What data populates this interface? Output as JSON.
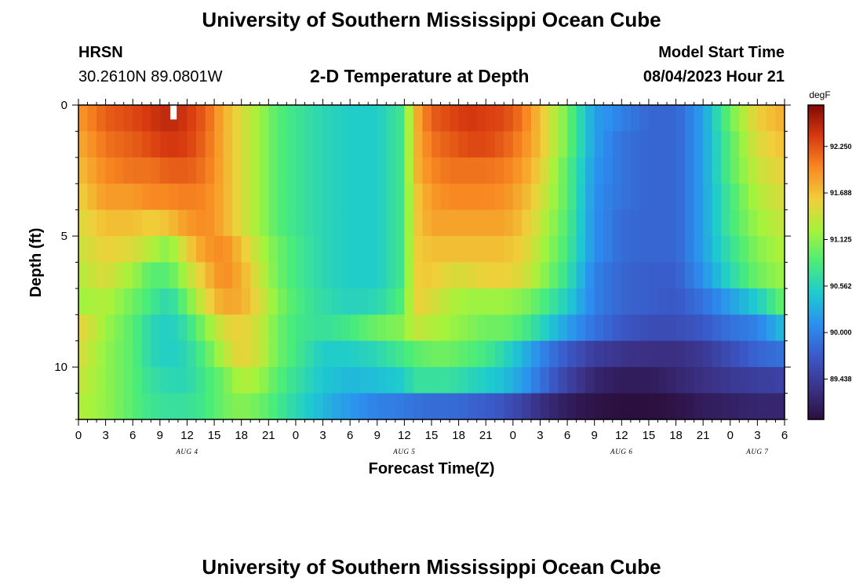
{
  "header": {
    "title": "University of Southern Mississippi Ocean Cube",
    "station": "HRSN",
    "coords": "30.2610N  89.0801W",
    "plot_title": "2-D Temperature at Depth",
    "model_label": "Model Start Time",
    "model_time": "08/04/2023 Hour 21",
    "footer_title": "University of Southern Mississippi Ocean Cube"
  },
  "chart_data": {
    "type": "heatmap",
    "title": "2-D Temperature at Depth",
    "xlabel": "Forecast Time(Z)",
    "ylabel": "Depth (ft)",
    "x_hours": [
      0,
      78
    ],
    "y_range": [
      0,
      12
    ],
    "x_tick_labels": [
      "0",
      "3",
      "6",
      "9",
      "12",
      "15",
      "18",
      "21",
      "0",
      "3",
      "6",
      "9",
      "12",
      "15",
      "18",
      "21",
      "0",
      "3",
      "6",
      "9",
      "12",
      "15",
      "18",
      "21",
      "0",
      "3",
      "6"
    ],
    "y_tick_labels": [
      "0",
      "5",
      "10"
    ],
    "date_labels": [
      {
        "label": "AUG 4",
        "hour": 12
      },
      {
        "label": "AUG 5",
        "hour": 36
      },
      {
        "label": "AUG 6",
        "hour": 60
      },
      {
        "label": "AUG 7",
        "hour": 75
      }
    ],
    "colorbar": {
      "unit": "degF",
      "min": 88.95,
      "max": 92.75,
      "tick_labels": [
        "92.250",
        "91.688",
        "91.125",
        "90.562",
        "90.000",
        "89.438"
      ],
      "tick_values": [
        92.25,
        91.688,
        91.125,
        90.562,
        90.0,
        89.438
      ]
    },
    "layer_depth_ft": [
      0.5,
      1.5,
      2.5,
      3.5,
      4.5,
      5.5,
      6.5,
      7.5,
      8.5,
      9.5,
      10.5,
      11.5
    ],
    "keyframes_hours": [
      0,
      3,
      6,
      8,
      10,
      12,
      14,
      16,
      18,
      20,
      22,
      24,
      27,
      30,
      33,
      36,
      37,
      39,
      41,
      43,
      45,
      47,
      49,
      51,
      54,
      57,
      60,
      63,
      66,
      69,
      72,
      75,
      78
    ],
    "temperature_degF": [
      [
        91.9,
        92.2,
        92.3,
        92.4,
        92.5,
        92.4,
        92.2,
        91.8,
        91.5,
        91.2,
        90.9,
        90.75,
        90.6,
        90.5,
        90.5,
        90.8,
        91.7,
        92.2,
        92.3,
        92.4,
        92.35,
        92.3,
        92.1,
        91.7,
        91.0,
        90.2,
        90.0,
        89.8,
        89.8,
        90.2,
        91.0,
        91.6,
        91.8
      ],
      [
        91.8,
        92.1,
        92.2,
        92.3,
        92.4,
        92.35,
        92.15,
        91.8,
        91.5,
        91.2,
        90.9,
        90.75,
        90.6,
        90.5,
        90.5,
        90.8,
        91.7,
        92.1,
        92.2,
        92.3,
        92.3,
        92.2,
        92.0,
        91.7,
        91.0,
        90.2,
        89.9,
        89.8,
        89.8,
        90.2,
        90.9,
        91.5,
        91.7
      ],
      [
        91.7,
        92.0,
        92.1,
        92.1,
        92.2,
        92.2,
        92.1,
        91.8,
        91.5,
        91.2,
        90.9,
        90.75,
        90.6,
        90.5,
        90.5,
        90.8,
        91.7,
        92.0,
        92.1,
        92.1,
        92.1,
        92.05,
        91.9,
        91.6,
        90.9,
        90.15,
        89.9,
        89.8,
        89.8,
        90.2,
        90.9,
        91.4,
        91.6
      ],
      [
        91.6,
        91.9,
        91.9,
        92.0,
        92.0,
        92.05,
        92.0,
        91.8,
        91.5,
        91.2,
        90.9,
        90.75,
        90.6,
        90.5,
        90.5,
        90.8,
        91.6,
        91.9,
        92.0,
        92.0,
        92.0,
        91.95,
        91.8,
        91.5,
        90.9,
        90.1,
        89.9,
        89.8,
        89.8,
        90.2,
        90.8,
        91.3,
        91.5
      ],
      [
        91.5,
        91.7,
        91.7,
        91.6,
        91.7,
        91.9,
        92.0,
        91.8,
        91.5,
        91.2,
        90.9,
        90.75,
        90.6,
        90.5,
        90.5,
        90.8,
        91.6,
        91.85,
        91.85,
        91.85,
        91.85,
        91.85,
        91.7,
        91.4,
        90.85,
        90.1,
        89.85,
        89.8,
        89.8,
        90.2,
        90.8,
        91.2,
        91.4
      ],
      [
        91.4,
        91.6,
        91.5,
        91.3,
        91.1,
        91.6,
        91.9,
        92.0,
        91.7,
        91.3,
        91.0,
        90.8,
        90.6,
        90.5,
        90.5,
        90.8,
        91.6,
        91.7,
        91.7,
        91.7,
        91.7,
        91.7,
        91.6,
        91.3,
        90.8,
        90.1,
        89.85,
        89.8,
        89.8,
        90.2,
        90.7,
        91.1,
        91.3
      ],
      [
        91.3,
        91.5,
        91.2,
        90.9,
        90.9,
        91.3,
        91.7,
        92.0,
        91.8,
        91.4,
        91.0,
        90.8,
        90.6,
        90.5,
        90.5,
        90.8,
        91.6,
        91.65,
        91.5,
        91.5,
        91.6,
        91.6,
        91.5,
        91.2,
        90.7,
        90.0,
        89.8,
        89.75,
        89.75,
        90.1,
        90.6,
        91.0,
        91.2
      ],
      [
        91.2,
        91.3,
        91.0,
        90.8,
        90.6,
        91.0,
        91.5,
        91.85,
        91.8,
        91.5,
        91.1,
        90.85,
        90.65,
        90.55,
        90.6,
        90.9,
        91.6,
        91.5,
        91.3,
        91.2,
        91.2,
        91.2,
        91.1,
        90.9,
        90.5,
        90.0,
        89.8,
        89.75,
        89.7,
        89.9,
        90.2,
        90.5,
        91.0
      ],
      [
        91.6,
        91.2,
        90.9,
        90.6,
        90.5,
        90.7,
        91.1,
        91.5,
        91.6,
        91.4,
        91.0,
        90.8,
        90.7,
        90.8,
        91.0,
        91.1,
        91.4,
        91.3,
        91.2,
        91.1,
        91.0,
        91.0,
        90.85,
        90.6,
        90.2,
        89.9,
        89.7,
        89.6,
        89.6,
        89.7,
        89.9,
        90.0,
        90.4
      ],
      [
        91.5,
        91.15,
        90.9,
        90.6,
        90.5,
        90.6,
        90.9,
        91.3,
        91.6,
        91.4,
        91.0,
        90.8,
        90.5,
        90.5,
        90.6,
        90.8,
        90.9,
        91.0,
        91.0,
        90.9,
        90.8,
        90.6,
        90.35,
        90.05,
        89.7,
        89.45,
        89.35,
        89.3,
        89.3,
        89.4,
        89.6,
        89.8,
        89.9
      ],
      [
        91.4,
        91.15,
        90.9,
        90.7,
        90.6,
        90.6,
        90.8,
        91.0,
        91.3,
        91.2,
        90.9,
        90.7,
        90.45,
        90.35,
        90.4,
        90.5,
        90.7,
        90.7,
        90.7,
        90.6,
        90.5,
        90.4,
        90.2,
        89.9,
        89.5,
        89.2,
        89.1,
        89.1,
        89.2,
        89.3,
        89.4,
        89.45,
        89.5
      ],
      [
        91.3,
        91.15,
        90.9,
        90.75,
        90.7,
        90.7,
        90.8,
        91.0,
        91.1,
        91.0,
        90.8,
        90.6,
        90.35,
        90.15,
        90.0,
        89.95,
        89.9,
        89.85,
        89.85,
        89.8,
        89.75,
        89.65,
        89.5,
        89.3,
        89.1,
        89.0,
        88.95,
        88.95,
        89.0,
        89.1,
        89.15,
        89.2,
        89.2
      ]
    ],
    "missing_cell": {
      "depth_ft": 0.5,
      "hour": 10.5
    }
  }
}
